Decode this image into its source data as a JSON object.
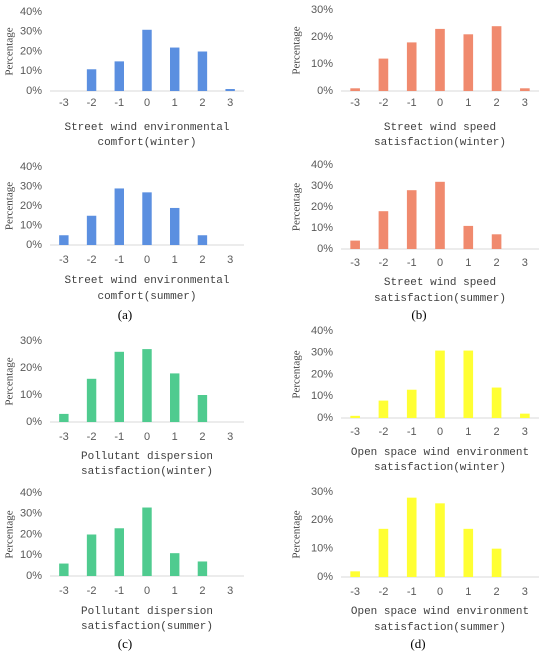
{
  "chart_data": [
    {
      "type": "bar",
      "ylabel": "Percentage",
      "xlabel": [
        "Street wind environmental",
        "comfort(winter)"
      ],
      "categories": [
        "-3",
        "-2",
        "-1",
        "0",
        "1",
        "2",
        "3"
      ],
      "values": [
        0,
        11,
        15,
        31,
        22,
        20,
        1
      ],
      "color": "#5b8fe0",
      "ylim": [
        0,
        40
      ],
      "yticks": [
        {
          "value": 0,
          "label": "0%"
        },
        {
          "value": 10,
          "label": "10%"
        },
        {
          "value": 20,
          "label": "20%"
        },
        {
          "value": 30,
          "label": "30%"
        },
        {
          "value": 40,
          "label": "40%"
        }
      ]
    },
    {
      "type": "bar",
      "ylabel": "Percentage",
      "xlabel": [
        "Street wind environmental",
        "comfort(summer)"
      ],
      "categories": [
        "-3",
        "-2",
        "-1",
        "0",
        "1",
        "2",
        "3"
      ],
      "values": [
        5,
        15,
        29,
        27,
        19,
        5,
        0
      ],
      "color": "#5b8fe0",
      "ylim": [
        0,
        40
      ],
      "yticks": [
        {
          "value": 0,
          "label": "0%"
        },
        {
          "value": 10,
          "label": "10%"
        },
        {
          "value": 20,
          "label": "20%"
        },
        {
          "value": 30,
          "label": "30%"
        },
        {
          "value": 40,
          "label": "40%"
        }
      ]
    },
    {
      "type": "bar",
      "ylabel": "Percentage",
      "xlabel": [
        "Street wind speed",
        "satisfaction(winter)"
      ],
      "categories": [
        "-3",
        "-2",
        "-1",
        "0",
        "1",
        "2",
        "3"
      ],
      "values": [
        1,
        12,
        18,
        23,
        21,
        24,
        1
      ],
      "color": "#f08a6e",
      "ylim": [
        0,
        30
      ],
      "yticks": [
        {
          "value": 0,
          "label": "0%"
        },
        {
          "value": 10,
          "label": "10%"
        },
        {
          "value": 20,
          "label": "20%"
        },
        {
          "value": 30,
          "label": "30%"
        }
      ]
    },
    {
      "type": "bar",
      "ylabel": "Percentage",
      "xlabel": [
        "Street wind speed",
        "satisfaction(summer)"
      ],
      "categories": [
        "-3",
        "-2",
        "-1",
        "0",
        "1",
        "2",
        "3"
      ],
      "values": [
        4,
        18,
        28,
        32,
        11,
        7,
        0
      ],
      "color": "#f08a6e",
      "ylim": [
        0,
        40
      ],
      "yticks": [
        {
          "value": 0,
          "label": "0%"
        },
        {
          "value": 10,
          "label": "10%"
        },
        {
          "value": 20,
          "label": "20%"
        },
        {
          "value": 30,
          "label": "30%"
        },
        {
          "value": 40,
          "label": "40%"
        }
      ]
    },
    {
      "type": "bar",
      "ylabel": "Percentage",
      "xlabel": [
        "Pollutant dispersion",
        "satisfaction(winter)"
      ],
      "categories": [
        "-3",
        "-2",
        "-1",
        "0",
        "1",
        "2",
        "3"
      ],
      "values": [
        3,
        16,
        26,
        27,
        18,
        10,
        0
      ],
      "color": "#4fcb8f",
      "ylim": [
        0,
        30
      ],
      "yticks": [
        {
          "value": 0,
          "label": "0%"
        },
        {
          "value": 10,
          "label": "10%"
        },
        {
          "value": 20,
          "label": "20%"
        },
        {
          "value": 30,
          "label": "30%"
        }
      ]
    },
    {
      "type": "bar",
      "ylabel": "Percentage",
      "xlabel": [
        "Pollutant dispersion",
        "satisfaction(summer)"
      ],
      "categories": [
        "-3",
        "-2",
        "-1",
        "0",
        "1",
        "2",
        "3"
      ],
      "values": [
        6,
        20,
        23,
        33,
        11,
        7,
        0
      ],
      "color": "#4fcb8f",
      "ylim": [
        0,
        40
      ],
      "yticks": [
        {
          "value": 0,
          "label": "0%"
        },
        {
          "value": 10,
          "label": "10%"
        },
        {
          "value": 20,
          "label": "20%"
        },
        {
          "value": 30,
          "label": "30%"
        },
        {
          "value": 40,
          "label": "40%"
        }
      ]
    },
    {
      "type": "bar",
      "ylabel": "Percentage",
      "xlabel": [
        "Open space wind environment",
        "satisfaction(winter)"
      ],
      "categories": [
        "-3",
        "-2",
        "-1",
        "0",
        "1",
        "2",
        "3"
      ],
      "values": [
        1,
        8,
        13,
        31,
        31,
        14,
        2
      ],
      "color": "#ffff33",
      "ylim": [
        0,
        40
      ],
      "yticks": [
        {
          "value": 0,
          "label": "0%"
        },
        {
          "value": 10,
          "label": "10%"
        },
        {
          "value": 20,
          "label": "20%"
        },
        {
          "value": 30,
          "label": "30%"
        },
        {
          "value": 40,
          "label": "40%"
        }
      ]
    },
    {
      "type": "bar",
      "ylabel": "Percentage",
      "xlabel": [
        "Open space wind environment",
        "satisfaction(summer)"
      ],
      "categories": [
        "-3",
        "-2",
        "-1",
        "0",
        "1",
        "2",
        "3"
      ],
      "values": [
        2,
        17,
        28,
        26,
        17,
        10,
        0
      ],
      "color": "#ffff33",
      "ylim": [
        0,
        30
      ],
      "yticks": [
        {
          "value": 0,
          "label": "0%"
        },
        {
          "value": 10,
          "label": "10%"
        },
        {
          "value": 20,
          "label": "20%"
        },
        {
          "value": 30,
          "label": "30%"
        }
      ]
    }
  ],
  "panel_labels": [
    "(a)",
    "(b)",
    "(c)",
    "(d)"
  ]
}
